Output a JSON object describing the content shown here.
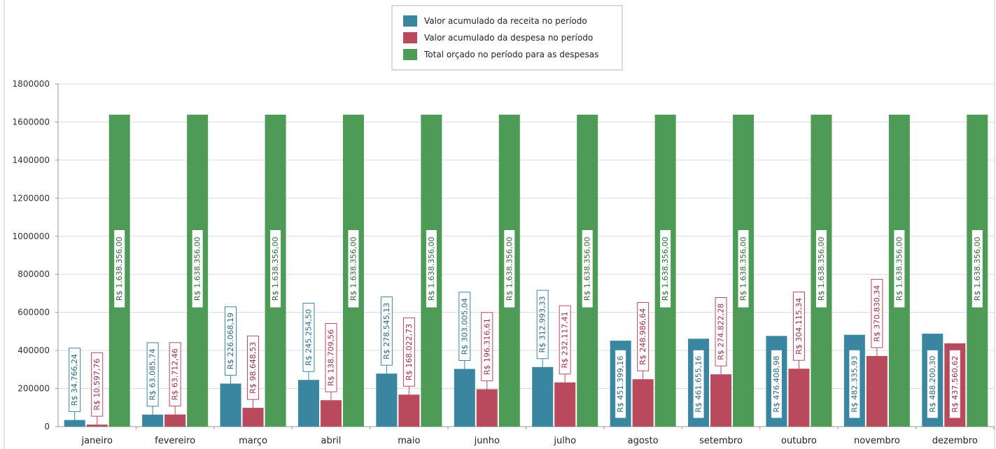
{
  "chart_data": {
    "type": "bar",
    "categories": [
      "janeiro",
      "fevereiro",
      "março",
      "abril",
      "maio",
      "junho",
      "julho",
      "agosto",
      "setembro",
      "outubro",
      "novembro",
      "dezembro"
    ],
    "series": [
      {
        "name": "Valor acumulado da receita no período",
        "color": "#3a86a0",
        "values": [
          34766.24,
          63085.74,
          226068.19,
          245254.5,
          278545.13,
          303005.04,
          312993.33,
          451399.16,
          461655.16,
          476408.98,
          482335.93,
          488200.3
        ],
        "labels": [
          "R$ 34.766,24",
          "R$ 63.085,74",
          "R$ 226.068,19",
          "R$ 245.254,50",
          "R$ 278.545,13",
          "R$ 303.005,04",
          "R$ 312.993,33",
          "R$ 451.399,16",
          "R$ 461.655,16",
          "R$ 476.408,98",
          "R$ 482.335,93",
          "R$ 488.200,30"
        ]
      },
      {
        "name": "Valor acumulado da despesa no período",
        "color": "#b94a5e",
        "values": [
          10597.76,
          63712.46,
          98648.53,
          138709.56,
          168022.73,
          196316.61,
          232117.41,
          248986.64,
          274822.28,
          304115.34,
          370830.34,
          437560.62
        ],
        "labels": [
          "R$ 10.597,76",
          "R$ 63.712,46",
          "R$ 98.648,53",
          "R$ 138.709,56",
          "R$ 168.022,73",
          "R$ 196.316,61",
          "R$ 232.117,41",
          "R$ 248.986,64",
          "R$ 274.822,28",
          "R$ 304.115,34",
          "R$ 370.830,34",
          "R$ 437.560,62"
        ]
      },
      {
        "name": "Total orçado no período para as despesas",
        "color": "#4e9a57",
        "values": [
          1638356,
          1638356,
          1638356,
          1638356,
          1638356,
          1638356,
          1638356,
          1638356,
          1638356,
          1638356,
          1638356,
          1638356
        ],
        "labels": [
          "R$ 1.638.356,00",
          "R$ 1.638.356,00",
          "R$ 1.638.356,00",
          "R$ 1.638.356,00",
          "R$ 1.638.356,00",
          "R$ 1.638.356,00",
          "R$ 1.638.356,00",
          "R$ 1.638.356,00",
          "R$ 1.638.356,00",
          "R$ 1.638.356,00",
          "R$ 1.638.356,00",
          "R$ 1.638.356,00"
        ]
      }
    ],
    "y_ticks": [
      "0",
      "200000",
      "400000",
      "600000",
      "800000",
      "1000000",
      "1200000",
      "1400000",
      "1600000",
      "1800000"
    ],
    "ylim": [
      0,
      1800000
    ],
    "legend_position": "top-center",
    "grid": true
  }
}
